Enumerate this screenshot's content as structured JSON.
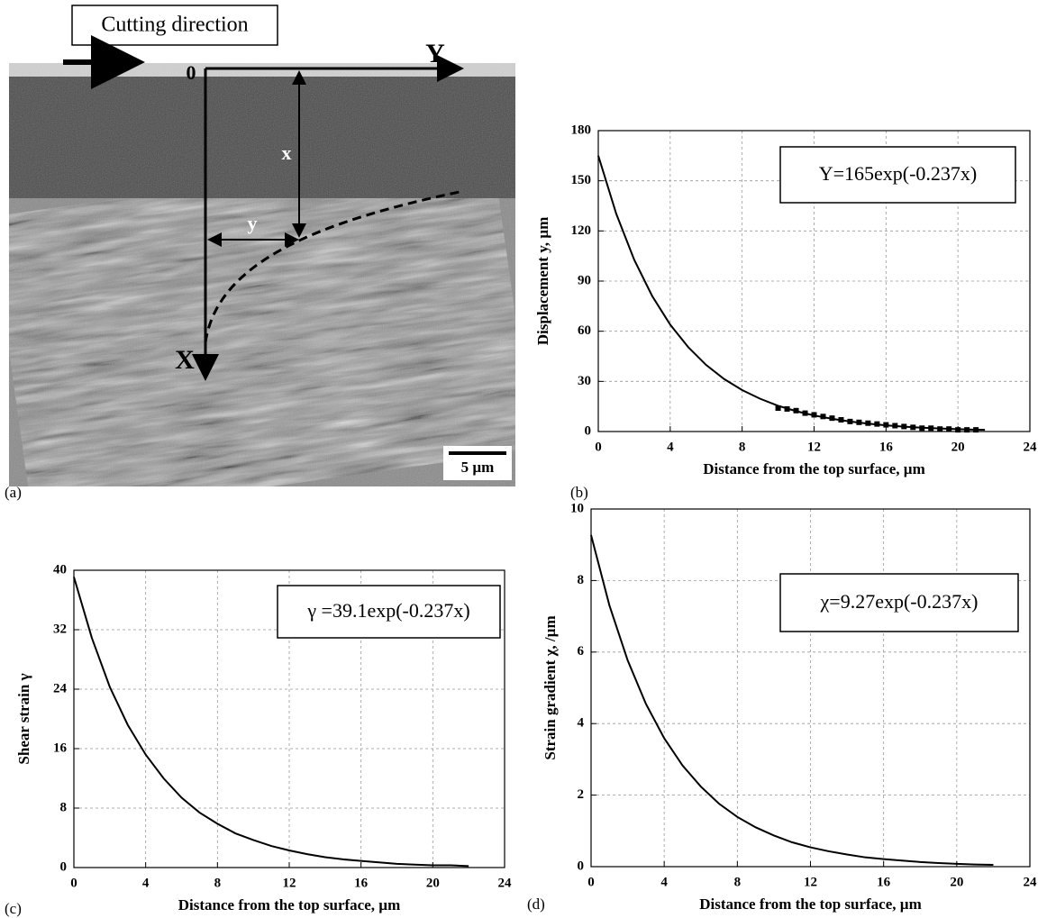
{
  "panel_a": {
    "label_box": "Cutting direction",
    "origin": "0",
    "axis_Y": "Y",
    "axis_X": "X",
    "depth": "x",
    "displacement": "y",
    "scale_bar": "5 µm",
    "panel_label": "(a)"
  },
  "chart_data": [
    {
      "type": "line",
      "panel_label": "(b)",
      "annotation": "Y=165exp(-0.237x)",
      "xlabel": "Distance from the top surface, µm",
      "ylabel": "Displacement y, µm",
      "xlim": [
        0,
        24
      ],
      "xticks": [
        0,
        4,
        8,
        12,
        16,
        20,
        24
      ],
      "ylim": [
        0,
        180
      ],
      "yticks": [
        0,
        30,
        60,
        90,
        120,
        150,
        180
      ],
      "grid": true,
      "series": [
        {
          "color": "#000000",
          "x": [
            0,
            1,
            2,
            3,
            4,
            5,
            6,
            7,
            8,
            9,
            10,
            11,
            12,
            13,
            14,
            15,
            16,
            17,
            18,
            19,
            20,
            21,
            21.5
          ],
          "values": [
            165,
            130.2,
            102.7,
            81.0,
            63.9,
            50.5,
            39.8,
            31.4,
            24.8,
            19.6,
            15.4,
            12.2,
            9.6,
            7.6,
            6.0,
            4.7,
            3.7,
            2.9,
            2.3,
            1.8,
            1.4,
            1.1,
            1.0
          ]
        },
        {
          "color": "#000000",
          "marker": "square",
          "x": [
            10,
            10.5,
            11,
            11.5,
            12,
            12.5,
            13,
            13.5,
            14,
            14.5,
            15,
            15.5,
            16,
            16.5,
            17,
            17.5,
            18,
            18.5,
            19,
            19.5,
            20,
            20.5,
            21
          ],
          "values": [
            14,
            13.5,
            12.5,
            11,
            10,
            9,
            8,
            7,
            6,
            5.5,
            5,
            4.5,
            4,
            3.5,
            3,
            2.5,
            2,
            2,
            1.5,
            1.5,
            1,
            1,
            1
          ]
        }
      ]
    },
    {
      "type": "line",
      "panel_label": "(c)",
      "annotation": "γ =39.1exp(-0.237x)",
      "xlabel": "Distance from the top surface, µm",
      "ylabel": "Shear strain γ",
      "xlim": [
        0,
        24
      ],
      "xticks": [
        0,
        4,
        8,
        12,
        16,
        20,
        24
      ],
      "ylim": [
        0,
        40
      ],
      "yticks": [
        0,
        8,
        16,
        24,
        32,
        40
      ],
      "grid": true,
      "series": [
        {
          "color": "#000000",
          "x": [
            0,
            1,
            2,
            3,
            4,
            5,
            6,
            7,
            8,
            9,
            10,
            11,
            12,
            13,
            14,
            15,
            16,
            17,
            18,
            19,
            20,
            21,
            22
          ],
          "values": [
            39.1,
            30.9,
            24.3,
            19.2,
            15.2,
            12.0,
            9.4,
            7.4,
            5.9,
            4.6,
            3.7,
            2.9,
            2.3,
            1.8,
            1.4,
            1.1,
            0.9,
            0.7,
            0.5,
            0.4,
            0.3,
            0.3,
            0.2
          ]
        }
      ]
    },
    {
      "type": "line",
      "panel_label": "(d)",
      "annotation": "χ=9.27exp(-0.237x)",
      "xlabel": "Distance from the top surface, µm",
      "ylabel": "Strain gradient χ, /µm",
      "xlim": [
        0,
        24
      ],
      "xticks": [
        0,
        4,
        8,
        12,
        16,
        20,
        24
      ],
      "ylim": [
        0,
        10
      ],
      "yticks": [
        0,
        2,
        4,
        6,
        8,
        10
      ],
      "grid": true,
      "series": [
        {
          "color": "#000000",
          "x": [
            0,
            1,
            2,
            3,
            4,
            5,
            6,
            7,
            8,
            9,
            10,
            11,
            12,
            13,
            14,
            15,
            16,
            17,
            18,
            19,
            20,
            21,
            22
          ],
          "values": [
            9.27,
            7.31,
            5.77,
            4.55,
            3.59,
            2.83,
            2.24,
            1.76,
            1.39,
            1.1,
            0.87,
            0.68,
            0.54,
            0.43,
            0.34,
            0.26,
            0.21,
            0.17,
            0.13,
            0.1,
            0.08,
            0.06,
            0.05
          ]
        }
      ]
    }
  ]
}
